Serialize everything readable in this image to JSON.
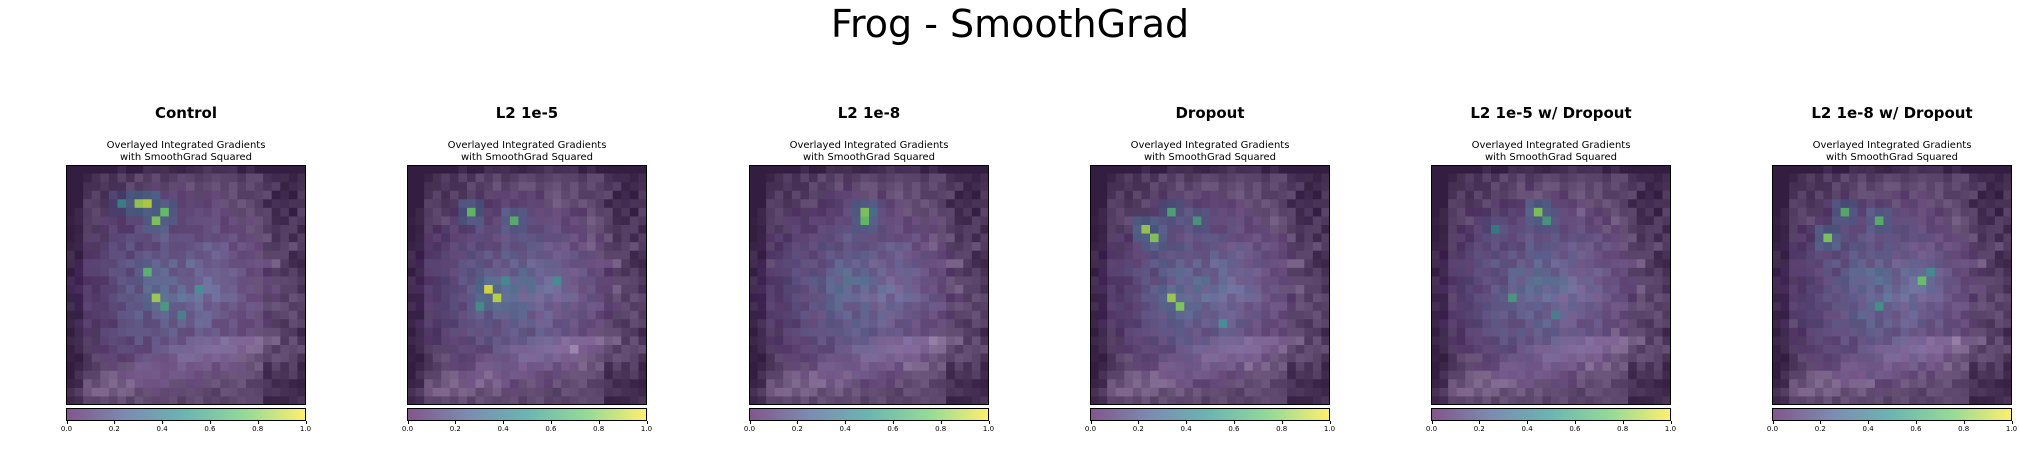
{
  "figure": {
    "title": "Frog - SmoothGrad"
  },
  "panel_subtitle": [
    "Overlayed Integrated Gradients",
    "with SmoothGrad Squared"
  ],
  "colors": {
    "cmap": [
      "#440154",
      "#3b528b",
      "#21918c",
      "#5ec962",
      "#fde725"
    ],
    "base_dark": "#2a1a38",
    "base_light": "#b7a3c6"
  },
  "chart_data": [
    {
      "type": "heatmap",
      "title": "Control",
      "subtitle": "Overlayed Integrated Gradients with SmoothGrad Squared",
      "colorbar": {
        "range": [
          0,
          1
        ],
        "ticks": [
          "0.0",
          "0.2",
          "0.4",
          "0.6",
          "0.8",
          "1.0"
        ]
      },
      "grid_size": [
        28,
        28
      ],
      "hotspots": [
        {
          "row": 4,
          "col": 8,
          "value": 0.85
        },
        {
          "row": 4,
          "col": 9,
          "value": 0.9
        },
        {
          "row": 5,
          "col": 11,
          "value": 0.75
        },
        {
          "row": 6,
          "col": 10,
          "value": 0.8
        },
        {
          "row": 4,
          "col": 6,
          "value": 0.5
        },
        {
          "row": 12,
          "col": 9,
          "value": 0.7
        },
        {
          "row": 15,
          "col": 10,
          "value": 0.85
        },
        {
          "row": 16,
          "col": 11,
          "value": 0.6
        },
        {
          "row": 14,
          "col": 15,
          "value": 0.5
        },
        {
          "row": 17,
          "col": 13,
          "value": 0.45
        }
      ]
    },
    {
      "type": "heatmap",
      "title": "L2 1e-5",
      "subtitle": "Overlayed Integrated Gradients with SmoothGrad Squared",
      "colorbar": {
        "range": [
          0,
          1
        ],
        "ticks": [
          "0.0",
          "0.2",
          "0.4",
          "0.6",
          "0.8",
          "1.0"
        ]
      },
      "grid_size": [
        28,
        28
      ],
      "hotspots": [
        {
          "row": 5,
          "col": 7,
          "value": 0.75
        },
        {
          "row": 6,
          "col": 12,
          "value": 0.7
        },
        {
          "row": 14,
          "col": 9,
          "value": 0.95
        },
        {
          "row": 15,
          "col": 10,
          "value": 0.9
        },
        {
          "row": 13,
          "col": 11,
          "value": 0.5
        },
        {
          "row": 13,
          "col": 17,
          "value": 0.5
        },
        {
          "row": 16,
          "col": 8,
          "value": 0.55
        }
      ]
    },
    {
      "type": "heatmap",
      "title": "L2 1e-8",
      "subtitle": "Overlayed Integrated Gradients with SmoothGrad Squared",
      "colorbar": {
        "range": [
          0,
          1
        ],
        "ticks": [
          "0.0",
          "0.2",
          "0.4",
          "0.6",
          "0.8",
          "1.0"
        ]
      },
      "grid_size": [
        28,
        28
      ],
      "hotspots": [
        {
          "row": 5,
          "col": 13,
          "value": 0.8
        },
        {
          "row": 6,
          "col": 13,
          "value": 0.75
        },
        {
          "row": 5,
          "col": 14,
          "value": 0.4
        },
        {
          "row": 14,
          "col": 10,
          "value": 0.35
        }
      ]
    },
    {
      "type": "heatmap",
      "title": "Dropout",
      "subtitle": "Overlayed Integrated Gradients with SmoothGrad Squared",
      "colorbar": {
        "range": [
          0,
          1
        ],
        "ticks": [
          "0.0",
          "0.2",
          "0.4",
          "0.6",
          "0.8",
          "1.0"
        ]
      },
      "grid_size": [
        28,
        28
      ],
      "hotspots": [
        {
          "row": 7,
          "col": 6,
          "value": 0.85
        },
        {
          "row": 8,
          "col": 7,
          "value": 0.8
        },
        {
          "row": 5,
          "col": 9,
          "value": 0.65
        },
        {
          "row": 6,
          "col": 12,
          "value": 0.6
        },
        {
          "row": 15,
          "col": 9,
          "value": 0.85
        },
        {
          "row": 16,
          "col": 10,
          "value": 0.8
        },
        {
          "row": 18,
          "col": 15,
          "value": 0.5
        }
      ]
    },
    {
      "type": "heatmap",
      "title": "L2 1e-5 w/ Dropout",
      "subtitle": "Overlayed Integrated Gradients with SmoothGrad Squared",
      "colorbar": {
        "range": [
          0,
          1
        ],
        "ticks": [
          "0.0",
          "0.2",
          "0.4",
          "0.6",
          "0.8",
          "1.0"
        ]
      },
      "grid_size": [
        28,
        28
      ],
      "hotspots": [
        {
          "row": 5,
          "col": 12,
          "value": 0.8
        },
        {
          "row": 6,
          "col": 13,
          "value": 0.6
        },
        {
          "row": 7,
          "col": 7,
          "value": 0.5
        },
        {
          "row": 15,
          "col": 9,
          "value": 0.6
        },
        {
          "row": 17,
          "col": 14,
          "value": 0.45
        }
      ]
    },
    {
      "type": "heatmap",
      "title": "L2 1e-8 w/ Dropout",
      "subtitle": "Overlayed Integrated Gradients with SmoothGrad Squared",
      "colorbar": {
        "range": [
          0,
          1
        ],
        "ticks": [
          "0.0",
          "0.2",
          "0.4",
          "0.6",
          "0.8",
          "1.0"
        ]
      },
      "grid_size": [
        28,
        28
      ],
      "hotspots": [
        {
          "row": 8,
          "col": 6,
          "value": 0.8
        },
        {
          "row": 5,
          "col": 8,
          "value": 0.7
        },
        {
          "row": 6,
          "col": 12,
          "value": 0.7
        },
        {
          "row": 13,
          "col": 17,
          "value": 0.75
        },
        {
          "row": 12,
          "col": 18,
          "value": 0.5
        },
        {
          "row": 16,
          "col": 12,
          "value": 0.55
        }
      ]
    }
  ]
}
